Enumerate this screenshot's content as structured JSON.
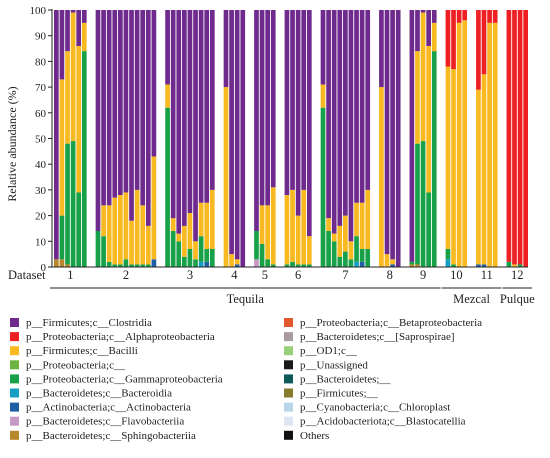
{
  "chart_data": {
    "type": "bar",
    "stacked": true,
    "ylabel": "Relative abundance (%)",
    "ylim": [
      0,
      100
    ],
    "yticks": [
      0,
      10,
      20,
      30,
      40,
      50,
      60,
      70,
      80,
      90,
      100
    ],
    "x_row_label": "Dataset",
    "grid": false,
    "legend_position": "bottom, two columns",
    "datasets": [
      {
        "label": "1",
        "bars": [
          {
            "p__Bacteroidetes;c__Sphingobacteriia": 3,
            "p__Proteobacteria;c__Gammaproteobacteria": 0,
            "p__Firmicutes;c__Bacilli": 0,
            "p__Firmicutes;c__Clostridia": 97
          },
          {
            "p__Bacteroidetes;c__Sphingobacteriia": 3,
            "p__Proteobacteria;c__Gammaproteobacteria": 17,
            "p__Firmicutes;c__Bacilli": 53,
            "p__Firmicutes;c__Clostridia": 27
          },
          {
            "p__Bacteroidetes;c__Sphingobacteriia": 1,
            "p__Proteobacteria;c__Gammaproteobacteria": 47,
            "p__Firmicutes;c__Bacilli": 36,
            "p__Firmicutes;c__Clostridia": 16
          },
          {
            "p__Bacteroidetes;c__Sphingobacteriia": 0,
            "p__Proteobacteria;c__Gammaproteobacteria": 49,
            "p__Firmicutes;c__Bacilli": 50,
            "p__Firmicutes;c__Clostridia": 1
          },
          {
            "p__Bacteroidetes;c__Sphingobacteriia": 0,
            "p__Proteobacteria;c__Gammaproteobacteria": 29,
            "p__Firmicutes;c__Bacilli": 57,
            "p__Firmicutes;c__Clostridia": 14
          },
          {
            "p__Bacteroidetes;c__Sphingobacteriia": 0,
            "p__Proteobacteria;c__Gammaproteobacteria": 84,
            "p__Firmicutes;c__Bacilli": 11,
            "p__Firmicutes;c__Clostridia": 5
          }
        ]
      },
      {
        "label": "2",
        "bars": [
          {
            "p__Proteobacteria;c__Gammaproteobacteria": 14,
            "p__Firmicutes;c__Bacilli": 0,
            "p__Firmicutes;c__Clostridia": 86
          },
          {
            "p__Proteobacteria;c__Gammaproteobacteria": 12,
            "p__Firmicutes;c__Bacilli": 12,
            "p__Firmicutes;c__Clostridia": 76
          },
          {
            "p__Proteobacteria;c__Gammaproteobacteria": 2,
            "p__Firmicutes;c__Bacilli": 22,
            "p__Firmicutes;c__Clostridia": 76
          },
          {
            "p__Proteobacteria;c__Gammaproteobacteria": 1,
            "p__Firmicutes;c__Bacilli": 26,
            "p__Firmicutes;c__Clostridia": 73
          },
          {
            "p__Proteobacteria;c__Gammaproteobacteria": 1,
            "p__Firmicutes;c__Bacilli": 27,
            "p__Firmicutes;c__Clostridia": 72
          },
          {
            "p__Proteobacteria;c__Gammaproteobacteria": 3,
            "p__Firmicutes;c__Bacilli": 26,
            "p__Firmicutes;c__Clostridia": 71
          },
          {
            "p__Proteobacteria;c__Gammaproteobacteria": 1,
            "p__Firmicutes;c__Bacilli": 17,
            "p__Firmicutes;c__Clostridia": 82
          },
          {
            "p__Proteobacteria;c__Gammaproteobacteria": 1,
            "p__Firmicutes;c__Bacilli": 29,
            "p__Firmicutes;c__Clostridia": 70
          },
          {
            "p__Proteobacteria;c__Gammaproteobacteria": 1,
            "p__Firmicutes;c__Bacilli": 23,
            "p__Firmicutes;c__Clostridia": 76
          },
          {
            "p__Proteobacteria;c__Gammaproteobacteria": 1,
            "p__Firmicutes;c__Bacilli": 15,
            "p__Firmicutes;c__Clostridia": 84
          },
          {
            "p__Actinobacteria;c__Actinobacteria": 3,
            "p__Firmicutes;c__Bacilli": 40,
            "p__Firmicutes;c__Clostridia": 57
          }
        ]
      },
      {
        "label": "3",
        "bars": [
          {
            "p__Proteobacteria;c__Gammaproteobacteria": 62,
            "p__Firmicutes;c__Bacilli": 9,
            "p__Firmicutes;c__Clostridia": 29
          },
          {
            "p__Proteobacteria;c__Gammaproteobacteria": 14,
            "p__Firmicutes;c__Bacilli": 5,
            "p__Firmicutes;c__Clostridia": 81
          },
          {
            "p__Proteobacteria;c__Gammaproteobacteria": 10,
            "p__Firmicutes;c__Bacilli": 3,
            "p__Firmicutes;c__Clostridia": 87
          },
          {
            "p__Proteobacteria;c__Gammaproteobacteria": 4,
            "p__Firmicutes;c__Bacilli": 12,
            "p__Firmicutes;c__Clostridia": 84
          },
          {
            "p__Proteobacteria;c__Gammaproteobacteria": 7,
            "p__Firmicutes;c__Bacilli": 14,
            "p__Firmicutes;c__Clostridia": 79
          },
          {
            "p__Proteobacteria;c__Gammaproteobacteria": 3,
            "p__Firmicutes;c__Bacilli": 7,
            "p__Firmicutes;c__Clostridia": 90
          },
          {
            "p__Bacteroidetes;c__Bacteroidia": 2,
            "p__Proteobacteria;c__Gammaproteobacteria": 10,
            "p__Firmicutes;c__Bacilli": 13,
            "p__Firmicutes;c__Clostridia": 75
          },
          {
            "p__Actinobacteria;c__Actinobacteria": 2,
            "p__Proteobacteria;c__Gammaproteobacteria": 5,
            "p__Firmicutes;c__Bacilli": 18,
            "p__Firmicutes;c__Clostridia": 75
          },
          {
            "p__Proteobacteria;c__Gammaproteobacteria": 7,
            "p__Firmicutes;c__Bacilli": 23,
            "p__Firmicutes;c__Clostridia": 70
          }
        ]
      },
      {
        "label": "4",
        "bars": [
          {
            "p__Firmicutes;c__Bacilli": 70,
            "p__Firmicutes;c__Clostridia": 30
          },
          {
            "p__Firmicutes;c__Bacilli": 5,
            "p__Firmicutes;c__Clostridia": 95
          },
          {
            "p__Actinobacteria;c__Actinobacteria": 1,
            "p__Firmicutes;c__Bacilli": 2,
            "p__Firmicutes;c__Clostridia": 97
          },
          {
            "p__Firmicutes;c__Bacilli": 0,
            "p__Firmicutes;c__Clostridia": 100
          }
        ]
      },
      {
        "label": "5",
        "bars": [
          {
            "p__Bacteroidetes;c__Flavobacteriia": 3,
            "p__Proteobacteria;c__Gammaproteobacteria": 11,
            "p__Firmicutes;c__Bacilli": 0,
            "p__Firmicutes;c__Clostridia": 86
          },
          {
            "p__Proteobacteria;c__Gammaproteobacteria": 9,
            "p__Firmicutes;c__Bacilli": 15,
            "p__Firmicutes;c__Clostridia": 76
          },
          {
            "p__Proteobacteria;c__Gammaproteobacteria": 3,
            "p__Firmicutes;c__Bacilli": 21,
            "p__Firmicutes;c__Clostridia": 76
          },
          {
            "p__Proteobacteria;c__Gammaproteobacteria": 1,
            "p__Firmicutes;c__Bacilli": 30,
            "p__Firmicutes;c__Clostridia": 69
          }
        ]
      },
      {
        "label": "6",
        "bars": [
          {
            "p__Proteobacteria;c__Gammaproteobacteria": 1,
            "p__Firmicutes;c__Bacilli": 27,
            "p__Firmicutes;c__Clostridia": 72
          },
          {
            "p__Proteobacteria;c__Gammaproteobacteria": 2,
            "p__Firmicutes;c__Bacilli": 28,
            "p__Firmicutes;c__Clostridia": 70
          },
          {
            "p__Proteobacteria;c__Gammaproteobacteria": 1,
            "p__Firmicutes;c__Bacilli": 19,
            "p__Firmicutes;c__Clostridia": 80
          },
          {
            "p__Proteobacteria;c__Gammaproteobacteria": 1,
            "p__Firmicutes;c__Bacilli": 29,
            "p__Firmicutes;c__Clostridia": 70
          },
          {
            "p__Proteobacteria;c__Gammaproteobacteria": 1,
            "p__Firmicutes;c__Bacilli": 11,
            "p__Firmicutes;c__Clostridia": 88
          }
        ]
      },
      {
        "label": "7",
        "bars": [
          {
            "p__Proteobacteria;c__Gammaproteobacteria": 62,
            "p__Firmicutes;c__Bacilli": 9,
            "p__Firmicutes;c__Clostridia": 29
          },
          {
            "p__Proteobacteria;c__Gammaproteobacteria": 14,
            "p__Firmicutes;c__Bacilli": 5,
            "p__Firmicutes;c__Clostridia": 81
          },
          {
            "p__Proteobacteria;c__Gammaproteobacteria": 10,
            "p__Firmicutes;c__Bacilli": 3,
            "p__Firmicutes;c__Clostridia": 87
          },
          {
            "p__Proteobacteria;c__Gammaproteobacteria": 4,
            "p__Firmicutes;c__Bacilli": 12,
            "p__Firmicutes;c__Clostridia": 84
          },
          {
            "p__Proteobacteria;c__Gammaproteobacteria": 6,
            "p__Firmicutes;c__Bacilli": 14,
            "p__Firmicutes;c__Clostridia": 80
          },
          {
            "p__Proteobacteria;c__Gammaproteobacteria": 3,
            "p__Firmicutes;c__Bacilli": 7,
            "p__Firmicutes;c__Clostridia": 90
          },
          {
            "p__Bacteroidetes;c__Bacteroidia": 2,
            "p__Proteobacteria;c__Gammaproteobacteria": 10,
            "p__Firmicutes;c__Bacilli": 13,
            "p__Firmicutes;c__Clostridia": 75
          },
          {
            "p__Actinobacteria;c__Actinobacteria": 2,
            "p__Proteobacteria;c__Gammaproteobacteria": 5,
            "p__Firmicutes;c__Bacilli": 18,
            "p__Firmicutes;c__Clostridia": 75
          },
          {
            "p__Proteobacteria;c__Gammaproteobacteria": 7,
            "p__Firmicutes;c__Bacilli": 23,
            "p__Firmicutes;c__Clostridia": 70
          }
        ]
      },
      {
        "label": "8",
        "bars": [
          {
            "p__Firmicutes;c__Bacilli": 70,
            "p__Firmicutes;c__Clostridia": 30
          },
          {
            "p__Firmicutes;c__Bacilli": 5,
            "p__Firmicutes;c__Clostridia": 95
          },
          {
            "p__Actinobacteria;c__Actinobacteria": 1,
            "p__Firmicutes;c__Bacilli": 2,
            "p__Firmicutes;c__Clostridia": 97
          },
          {
            "p__Firmicutes;c__Bacilli": 0,
            "p__Firmicutes;c__Clostridia": 100
          }
        ]
      },
      {
        "label": "9",
        "bars": [
          {
            "p__Bacteroidetes;c__Sphingobacteriia": 1,
            "p__Proteobacteria;c__Gammaproteobacteria": 1,
            "p__Firmicutes;c__Bacilli": 0,
            "p__Firmicutes;c__Clostridia": 98
          },
          {
            "p__Bacteroidetes;c__Sphingobacteriia": 1,
            "p__Proteobacteria;c__Gammaproteobacteria": 47,
            "p__Firmicutes;c__Bacilli": 36,
            "p__Firmicutes;c__Clostridia": 16
          },
          {
            "p__Proteobacteria;c__Gammaproteobacteria": 49,
            "p__Firmicutes;c__Bacilli": 50,
            "p__Firmicutes;c__Clostridia": 1
          },
          {
            "p__Proteobacteria;c__Gammaproteobacteria": 29,
            "p__Firmicutes;c__Bacilli": 57,
            "p__Firmicutes;c__Clostridia": 14
          },
          {
            "p__Proteobacteria;c__Gammaproteobacteria": 84,
            "p__Firmicutes;c__Bacilli": 11,
            "p__Firmicutes;c__Clostridia": 5
          }
        ]
      },
      {
        "label": "10",
        "bars": [
          {
            "p__Bacteroidetes;c__Bacteroidia": 3,
            "p__Proteobacteria;c__Gammaproteobacteria": 4,
            "p__Firmicutes;c__Bacilli": 71,
            "p__Proteobacteria;c__Alphaproteobacteria": 22
          },
          {
            "p__Proteobacteria;c__Gammaproteobacteria": 1,
            "p__Firmicutes;c__Bacilli": 76,
            "p__Proteobacteria;c__Alphaproteobacteria": 23
          },
          {
            "p__Firmicutes;c__Bacilli": 95,
            "p__Proteobacteria;c__Alphaproteobacteria": 5
          },
          {
            "p__Firmicutes;c__Bacilli": 96,
            "p__Proteobacteria;c__Alphaproteobacteria": 4
          }
        ]
      },
      {
        "label": "11",
        "bars": [
          {
            "p__Actinobacteria;c__Actinobacteria": 1,
            "p__Firmicutes;c__Bacilli": 68,
            "p__Proteobacteria;c__Alphaproteobacteria": 31
          },
          {
            "p__Actinobacteria;c__Actinobacteria": 1,
            "p__Firmicutes;c__Bacilli": 74,
            "p__Proteobacteria;c__Alphaproteobacteria": 25
          },
          {
            "p__Firmicutes;c__Bacilli": 95,
            "p__Proteobacteria;c__Alphaproteobacteria": 5
          },
          {
            "p__Firmicutes;c__Bacilli": 95,
            "p__Proteobacteria;c__Alphaproteobacteria": 5
          }
        ]
      },
      {
        "label": "12",
        "bars": [
          {
            "p__Proteobacteria;c__Gammaproteobacteria": 2,
            "p__Proteobacteria;c__Alphaproteobacteria": 98
          },
          {
            "p__Firmicutes;c__Bacilli": 1,
            "p__Proteobacteria;c__Alphaproteobacteria": 99
          },
          {
            "p__Proteobacteria;c__Gammaproteobacteria": 1,
            "p__Proteobacteria;c__Alphaproteobacteria": 99
          },
          {
            "p__Proteobacteria;c__Alphaproteobacteria": 100
          }
        ]
      }
    ],
    "groups": [
      {
        "label": "Tequila",
        "datasets": [
          "1",
          "2",
          "3",
          "4",
          "5",
          "6",
          "7",
          "8",
          "9"
        ]
      },
      {
        "label": "Mezcal",
        "datasets": [
          "10",
          "11"
        ]
      },
      {
        "label": "Pulque",
        "datasets": [
          "12"
        ]
      }
    ],
    "legend": [
      {
        "name": "p__Firmicutes;c__Clostridia",
        "color": "#6f2a8e"
      },
      {
        "name": "p__Proteobacteria;c__Alphaproteobacteria",
        "color": "#ed2024"
      },
      {
        "name": "p__Firmicutes;c__Bacilli",
        "color": "#f9b921"
      },
      {
        "name": "p__Proteobacteria;c__",
        "color": "#6db33f"
      },
      {
        "name": "p__Proteobacteria;c__Gammaproteobacteria",
        "color": "#19a14a"
      },
      {
        "name": "p__Bacteroidetes;c__Bacteroidia",
        "color": "#159fc4"
      },
      {
        "name": "p__Actinobacteria;c__Actinobacteria",
        "color": "#1f5fa6"
      },
      {
        "name": "p__Bacteroidetes;c__Flavobacteriia",
        "color": "#c79ac6"
      },
      {
        "name": "p__Bacteroidetes;c__Sphingobacteriia",
        "color": "#b8862b"
      },
      {
        "name": "p__Proteobacteria;c__Betaproteobacteria",
        "color": "#e2592f"
      },
      {
        "name": "p__Bacteroidetes;c__[Saprospirae]",
        "color": "#a89c9d"
      },
      {
        "name": "p__OD1;c__",
        "color": "#98d07a"
      },
      {
        "name": "p__Unassigned",
        "color": "#1a1a1a"
      },
      {
        "name": "p__Bacteroidetes;__",
        "color": "#0e5a5a"
      },
      {
        "name": "p__Firmicutes;__",
        "color": "#867a2b"
      },
      {
        "name": "p__Cyanobacteria;c__Chloroplast",
        "color": "#b9d5ea"
      },
      {
        "name": "p__Acidobacteriota;c__Blastocatellia",
        "color": "#dde6f2"
      },
      {
        "name": "Others",
        "color": "#111111"
      }
    ]
  }
}
